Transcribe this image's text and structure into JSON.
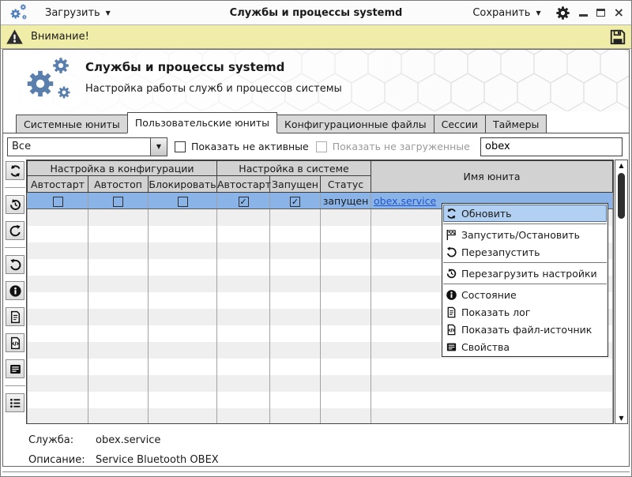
{
  "titlebar": {
    "load_label": "Загрузить",
    "title": "Службы и процессы systemd",
    "save_label": "Сохранить",
    "dropdown_arrow": "▼"
  },
  "warning_bar": {
    "label": "Внимание!"
  },
  "banner": {
    "title": "Службы и процессы systemd",
    "subtitle": "Настройка работы служб и процессов системы"
  },
  "tabs": [
    {
      "label": "Системные юниты",
      "active": false
    },
    {
      "label": "Пользовательские юниты",
      "active": true
    },
    {
      "label": "Конфигурационные файлы",
      "active": false
    },
    {
      "label": "Сессии",
      "active": false
    },
    {
      "label": "Таймеры",
      "active": false
    }
  ],
  "filter_bar": {
    "scope_value": "Все",
    "show_inactive_label": "Показать не активные",
    "show_inactive_checked": false,
    "show_unloaded_label": "Показать не загруженные",
    "show_unloaded_checked": false,
    "search_value": "obex"
  },
  "toolbar": {
    "buttons": [
      {
        "icon": "refresh-icon"
      },
      {
        "icon": "reload-config-icon"
      },
      {
        "icon": "restart-icon"
      },
      {
        "icon": "undo-icon"
      },
      {
        "icon": "info-icon"
      },
      {
        "icon": "log-icon"
      },
      {
        "icon": "source-file-icon"
      },
      {
        "icon": "properties-icon"
      },
      {
        "icon": "list-icon"
      }
    ]
  },
  "table": {
    "group_header_config": "Настройка в конфигурации",
    "group_header_system": "Настройка в системе",
    "col_autostart_cfg": "Автостарт",
    "col_autostop": "Автостоп",
    "col_block": "Блокировать",
    "col_autostart_sys": "Автостарт",
    "col_running": "Запущен",
    "col_status": "Статус",
    "col_unit": "Имя юнита",
    "selected_row": {
      "autostart_cfg": false,
      "autostop": false,
      "block": false,
      "autostart_sys": true,
      "running": true,
      "status": "запущен",
      "unit_name": "obex.service"
    },
    "empty_row_count": 13
  },
  "context_menu": {
    "items": [
      {
        "label": "Обновить",
        "icon": "refresh-icon",
        "selected": true
      },
      {
        "label": "Запустить/Остановить",
        "icon": "start-stop-flag-icon",
        "selected": false
      },
      {
        "label": "Перезапустить",
        "icon": "restart-icon",
        "selected": false
      },
      {
        "label": "Перезагрузить настройки",
        "icon": "reload-config-icon",
        "selected": false
      },
      {
        "label": "Состояние",
        "icon": "info-icon",
        "selected": false
      },
      {
        "label": "Показать лог",
        "icon": "log-icon",
        "selected": false
      },
      {
        "label": "Показать файл-источник",
        "icon": "source-file-icon",
        "selected": false
      },
      {
        "label": "Свойства",
        "icon": "properties-icon",
        "selected": false
      }
    ]
  },
  "scrollbar": {
    "up_arrow": "▲",
    "down_arrow": "▼"
  },
  "footer": {
    "service_label": "Служба:",
    "service_value": "obex.service",
    "description_label": "Описание:",
    "description_value": "Service Bluetooth OBEX"
  },
  "colors": {
    "selected_row_bg": "#8ab4e8",
    "menu_highlight_bg": "#b2d0f2",
    "warning_bar_bg": "#f0eda9",
    "accent_gear_blue": "#5b7fad",
    "link_blue": "#2255cc"
  }
}
